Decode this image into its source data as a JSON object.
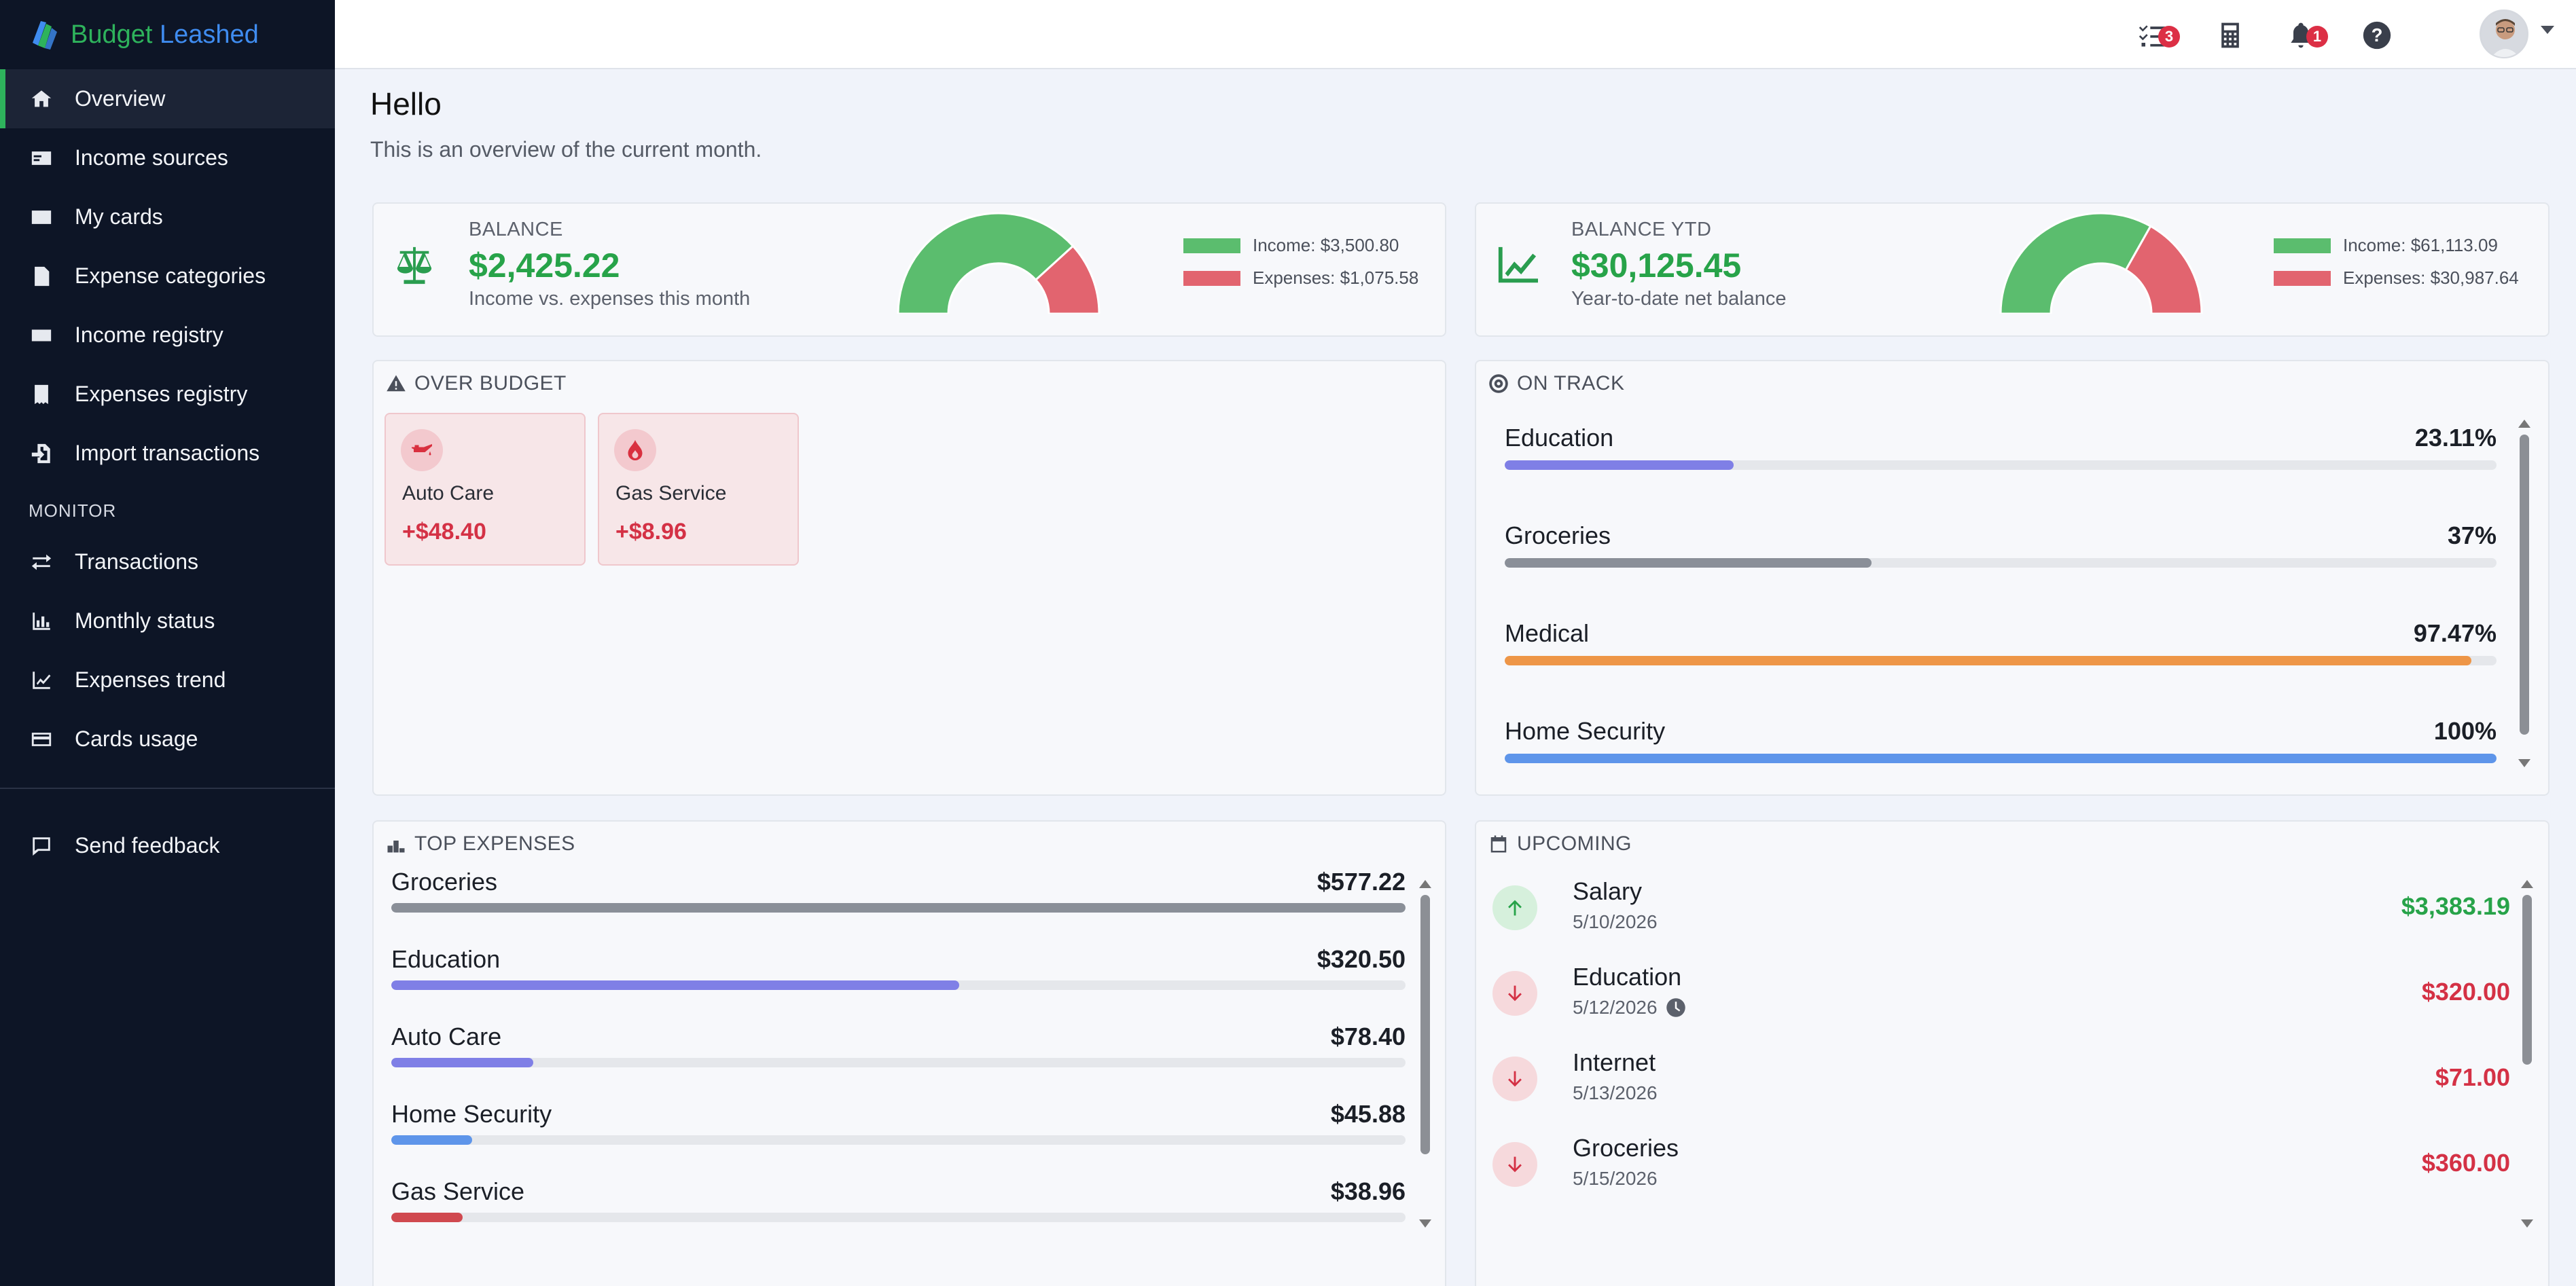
{
  "app": {
    "brand_part1": "Budget",
    "brand_part2": "Leashed"
  },
  "sidebar": {
    "items": [
      {
        "label": "Overview",
        "icon": "home-icon",
        "active": true
      },
      {
        "label": "Income sources",
        "icon": "id-card-icon"
      },
      {
        "label": "My cards",
        "icon": "credit-card-icon"
      },
      {
        "label": "Expense categories",
        "icon": "file-invoice-icon"
      },
      {
        "label": "Income registry",
        "icon": "money-check-icon"
      },
      {
        "label": "Expenses registry",
        "icon": "receipt-icon"
      },
      {
        "label": "Import transactions",
        "icon": "file-import-icon"
      }
    ],
    "section_monitor": "MONITOR",
    "monitor_items": [
      {
        "label": "Transactions",
        "icon": "arrows-exchange-icon"
      },
      {
        "label": "Monthly status",
        "icon": "bar-chart-icon"
      },
      {
        "label": "Expenses trend",
        "icon": "line-chart-icon"
      },
      {
        "label": "Cards usage",
        "icon": "credit-card-icon"
      }
    ],
    "feedback_label": "Send feedback"
  },
  "topbar": {
    "tasks_badge": "3",
    "notifications_badge": "1"
  },
  "page": {
    "title": "Hello",
    "subtitle": "This is an overview of the current month."
  },
  "balance": {
    "label": "BALANCE",
    "value": "$2,425.22",
    "desc": "Income vs. expenses this month",
    "income_legend": "Income: $3,500.80",
    "expenses_legend": "Expenses: $1,075.58",
    "income": 3500.8,
    "expenses": 1075.58
  },
  "balance_ytd": {
    "label": "BALANCE YTD",
    "value": "$30,125.45",
    "desc": "Year-to-date net balance",
    "income_legend": "Income: $61,113.09",
    "expenses_legend": "Expenses: $30,987.64",
    "income": 61113.09,
    "expenses": 30987.64
  },
  "over_budget": {
    "title": "OVER BUDGET",
    "items": [
      {
        "name": "Auto Care",
        "value": "+$48.40",
        "icon": "oil-can-icon"
      },
      {
        "name": "Gas Service",
        "value": "+$8.96",
        "icon": "flame-icon"
      }
    ]
  },
  "on_track": {
    "title": "ON TRACK",
    "items": [
      {
        "name": "Education",
        "value": "23.11%",
        "percent": 23.11,
        "color": "#7f7fe6"
      },
      {
        "name": "Groceries",
        "value": "37%",
        "percent": 37,
        "color": "#8a8f98"
      },
      {
        "name": "Medical",
        "value": "97.47%",
        "percent": 97.47,
        "color": "#ee9647"
      },
      {
        "name": "Home Security",
        "value": "100%",
        "percent": 100,
        "color": "#5e95ea"
      }
    ]
  },
  "top_expenses": {
    "title": "TOP EXPENSES",
    "items": [
      {
        "name": "Groceries",
        "value": "$577.22",
        "percent": 100,
        "color": "#8a8f98"
      },
      {
        "name": "Education",
        "value": "$320.50",
        "percent": 56,
        "color": "#7f7fe6"
      },
      {
        "name": "Auto Care",
        "value": "$78.40",
        "percent": 14,
        "color": "#7f7fe6"
      },
      {
        "name": "Home Security",
        "value": "$45.88",
        "percent": 8,
        "color": "#5e95ea"
      },
      {
        "name": "Gas Service",
        "value": "$38.96",
        "percent": 7,
        "color": "#d0494f"
      }
    ]
  },
  "upcoming": {
    "title": "UPCOMING",
    "items": [
      {
        "name": "Salary",
        "date": "5/10/2026",
        "amount": "$3,383.19",
        "type": "income",
        "clock": false
      },
      {
        "name": "Education",
        "date": "5/12/2026",
        "amount": "$320.00",
        "type": "expense",
        "clock": true
      },
      {
        "name": "Internet",
        "date": "5/13/2026",
        "amount": "$71.00",
        "type": "expense",
        "clock": false
      },
      {
        "name": "Groceries",
        "date": "5/15/2026",
        "amount": "$360.00",
        "type": "expense",
        "clock": false
      }
    ]
  },
  "colors": {
    "income": "#5bbd6e",
    "expense": "#e2646f",
    "positive_text": "#27a349",
    "negative_text": "#d43145"
  }
}
